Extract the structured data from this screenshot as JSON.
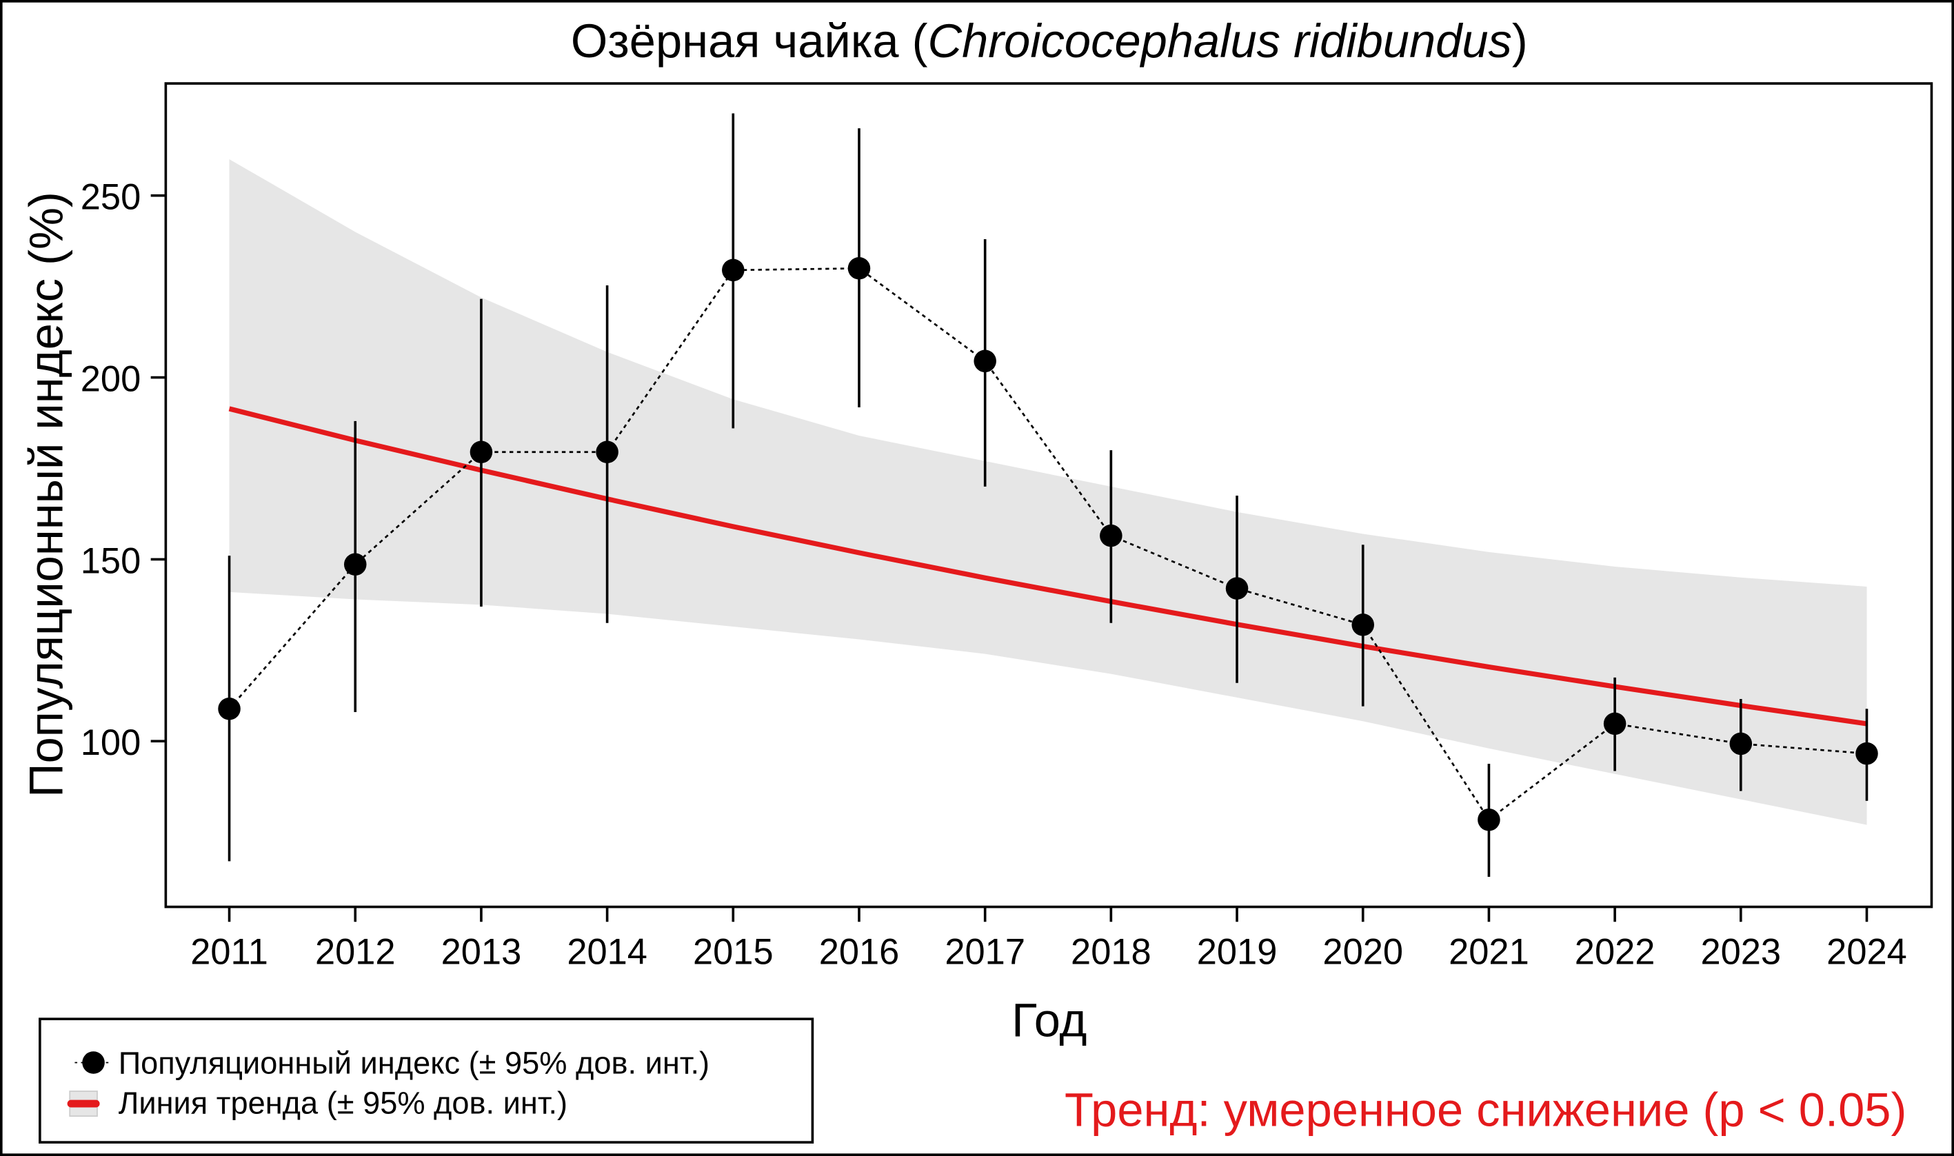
{
  "title": {
    "prefix": "Озёрная чайка (",
    "latin": "Chroicocephalus ridibundus",
    "suffix": ")"
  },
  "chart_data": {
    "type": "line",
    "xlabel": "Год",
    "ylabel": "Популяционный индекс (%)",
    "xlim": [
      2010.5,
      2024.5
    ],
    "ylim": [
      55,
      280
    ],
    "x_ticks": [
      2011,
      2012,
      2013,
      2014,
      2015,
      2016,
      2017,
      2018,
      2019,
      2020,
      2021,
      2022,
      2023,
      2024
    ],
    "y_ticks": [
      100,
      150,
      200,
      250
    ],
    "grid": false,
    "series": [
      {
        "name": "Популяционный индекс (± 95% дов. инт.)",
        "color": "#000000",
        "values": [
          108.9,
          148.6,
          179.5,
          179.5,
          229.5,
          230.0,
          204.5,
          156.5,
          142.0,
          132.0,
          78.4,
          104.8,
          99.3,
          96.6
        ],
        "ci_low": [
          67,
          108,
          137,
          132.5,
          186,
          191.8,
          170,
          132.5,
          116,
          109.6,
          62.7,
          91.8,
          86.3,
          83.6
        ],
        "ci_high": [
          151,
          188,
          221.6,
          225.3,
          272.6,
          268.5,
          238,
          180,
          167.5,
          154,
          93.8,
          117.5,
          111.6,
          108.9
        ]
      },
      {
        "name": "Линия тренда (± 95% дов. инт.)",
        "color": "#e41a1c",
        "band_color": "#e6e6e6",
        "values": [
          191.4,
          182.7,
          174.5,
          166.6,
          159.0,
          151.8,
          144.9,
          138.4,
          132.1,
          126.1,
          120.4,
          115.0,
          109.8,
          104.8
        ],
        "band_low": [
          141,
          139,
          137.5,
          135,
          131.5,
          128,
          124,
          118.5,
          112,
          105.5,
          98,
          91,
          84,
          77
        ],
        "band_high": [
          260,
          240,
          222,
          207,
          194,
          184,
          177,
          170,
          163,
          157,
          152,
          148,
          145,
          142.5
        ]
      }
    ],
    "legend_position": "bottom-left",
    "annotation": "Тренд: умеренное снижение (p < 0.05)",
    "annotation_color": "#e41a1c"
  }
}
